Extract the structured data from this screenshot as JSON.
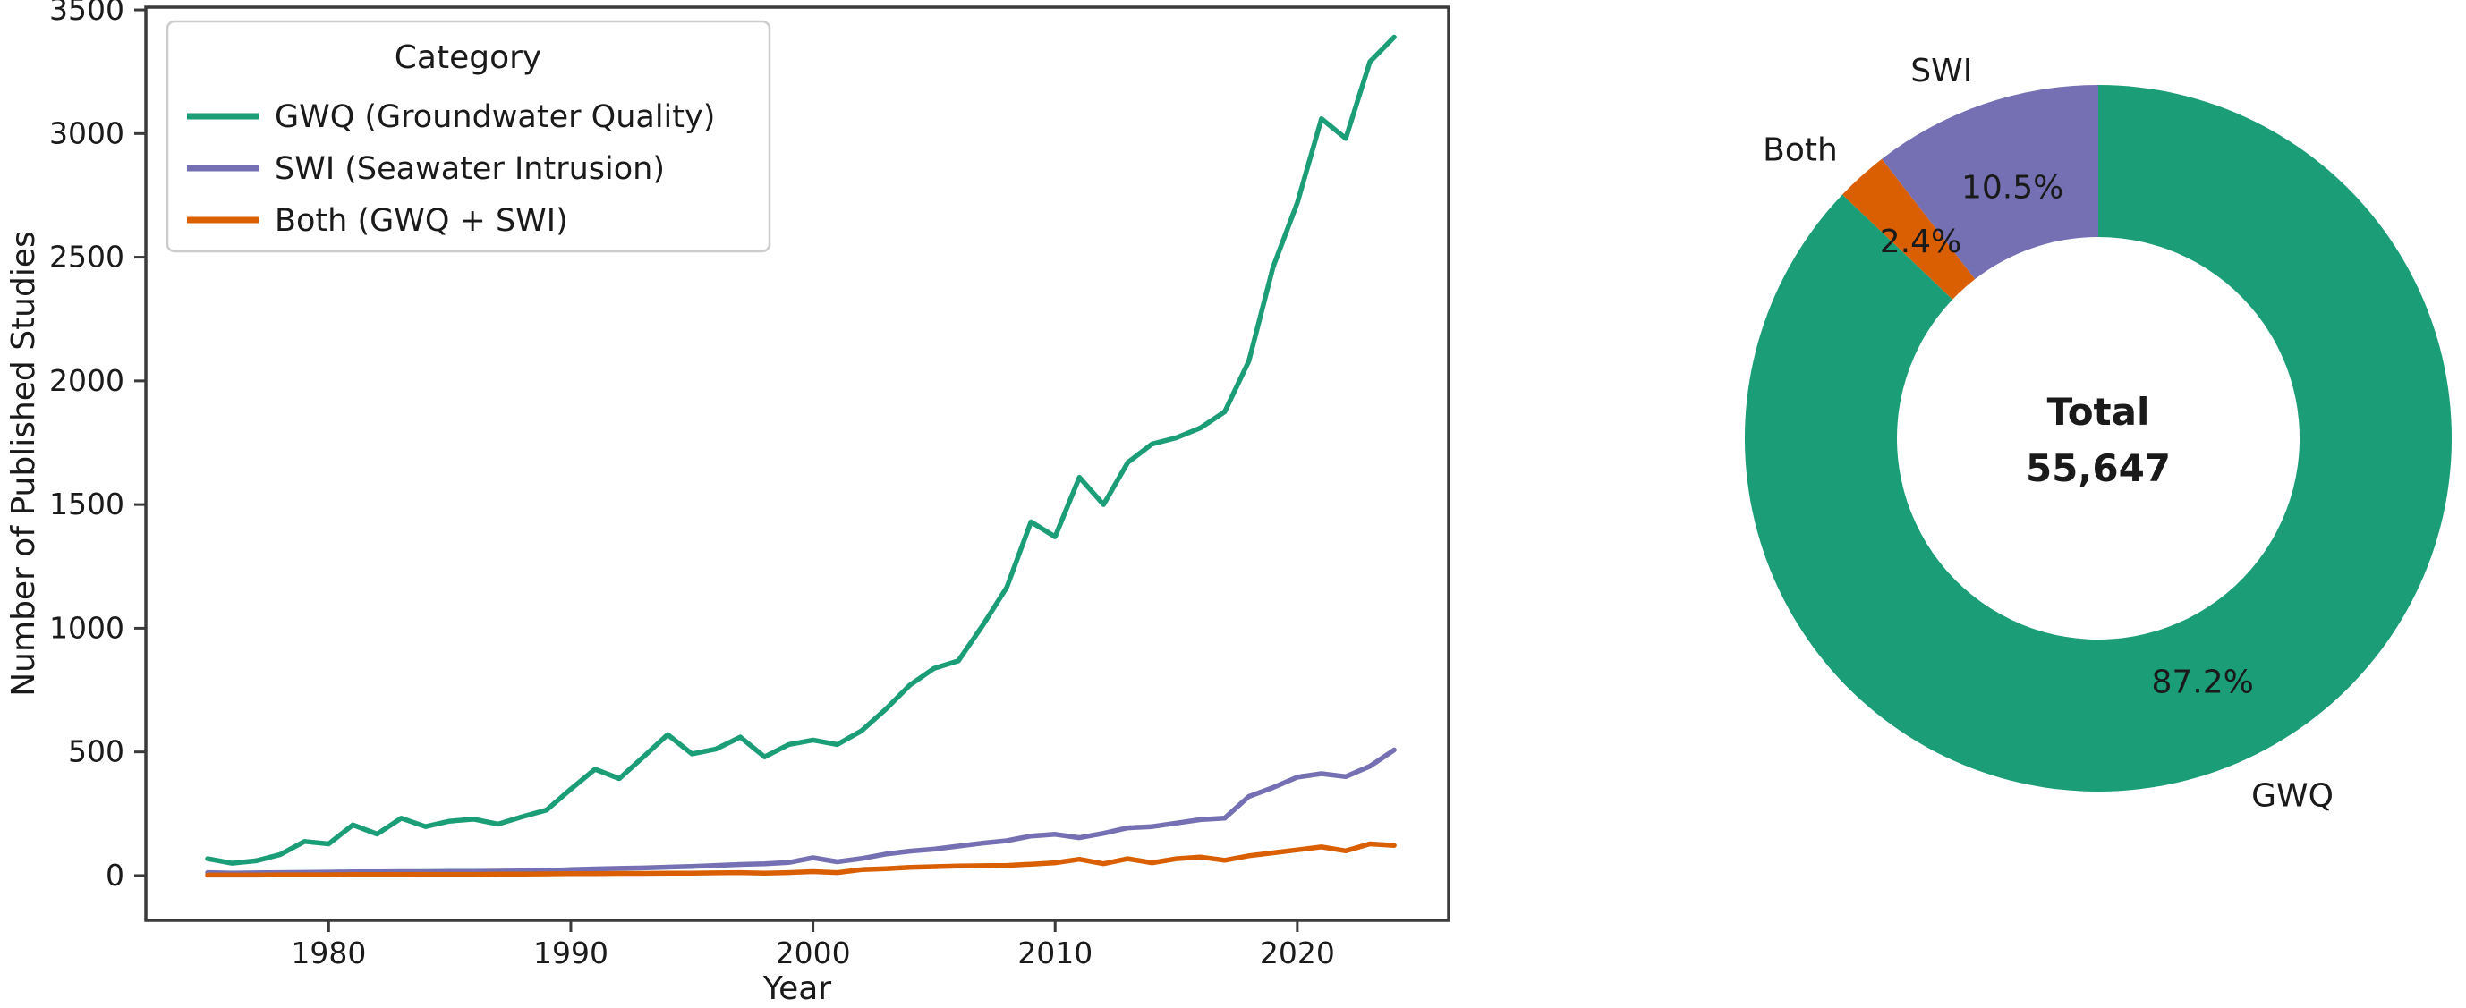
{
  "figure": {
    "background": "#ffffff",
    "description_left_panel": "line-chart",
    "description_right_panel": "donut-chart"
  },
  "colors": {
    "gwq": "#1b9e77",
    "swi": "#7570b3",
    "both": "#d95f02",
    "spine": "#3a3a3a",
    "text": "#1a1a1a",
    "legend_border": "#cccccc",
    "legend_fill": "#ffffff"
  },
  "chart_data": [
    {
      "type": "line",
      "title": "",
      "xlabel": "Year",
      "ylabel": "Number of Published Studies",
      "grid": false,
      "x_ticks": [
        1980,
        1990,
        2000,
        2010,
        2020
      ],
      "y_ticks": [
        0,
        500,
        1000,
        1500,
        2000,
        2500,
        3000,
        3500
      ],
      "xlim": [
        1972.45,
        2026.25
      ],
      "ylim": [
        -181,
        3511
      ],
      "legend": {
        "title": "Category",
        "position": "upper-left"
      },
      "x": [
        1975,
        1976,
        1977,
        1978,
        1979,
        1980,
        1981,
        1982,
        1983,
        1984,
        1985,
        1986,
        1987,
        1988,
        1989,
        1990,
        1991,
        1992,
        1993,
        1994,
        1995,
        1996,
        1997,
        1998,
        1999,
        2000,
        2001,
        2002,
        2003,
        2004,
        2005,
        2006,
        2007,
        2008,
        2009,
        2010,
        2011,
        2012,
        2013,
        2014,
        2015,
        2016,
        2017,
        2018,
        2019,
        2020,
        2021,
        2022,
        2023,
        2024
      ],
      "series": [
        {
          "name": "GWQ (Groundwater Quality)",
          "color_key": "gwq",
          "values": [
            68,
            50,
            60,
            85,
            138,
            128,
            205,
            168,
            232,
            198,
            220,
            228,
            208,
            238,
            265,
            350,
            430,
            392,
            480,
            570,
            492,
            512,
            560,
            480,
            530,
            548,
            530,
            585,
            672,
            770,
            838,
            868,
            1010,
            1165,
            1430,
            1370,
            1610,
            1500,
            1670,
            1745,
            1770,
            1810,
            1875,
            2080,
            2460,
            2720,
            3060,
            2980,
            3290,
            3390
          ]
        },
        {
          "name": "SWI (Seawater Intrusion)",
          "color_key": "swi",
          "values": [
            12,
            10,
            11,
            12,
            13,
            14,
            15,
            15,
            16,
            16,
            17,
            17,
            18,
            19,
            21,
            24,
            27,
            29,
            31,
            34,
            37,
            41,
            45,
            48,
            53,
            72,
            56,
            69,
            87,
            99,
            107,
            119,
            131,
            141,
            160,
            167,
            153,
            171,
            193,
            198,
            212,
            226,
            232,
            320,
            356,
            398,
            412,
            400,
            442,
            508
          ]
        },
        {
          "name": "Both (GWQ + SWI)",
          "color_key": "both",
          "values": [
            2,
            2,
            2,
            3,
            3,
            3,
            4,
            4,
            4,
            5,
            5,
            5,
            6,
            6,
            7,
            8,
            8,
            9,
            9,
            10,
            10,
            11,
            12,
            10,
            12,
            16,
            12,
            24,
            28,
            33,
            36,
            39,
            40,
            41,
            46,
            52,
            66,
            48,
            68,
            52,
            68,
            75,
            62,
            80,
            92,
            104,
            116,
            100,
            128,
            122
          ]
        }
      ]
    },
    {
      "type": "pie",
      "donut": true,
      "start_angle": 90,
      "direction": "counterclockwise",
      "center_title": "Total",
      "center_value": "55,647",
      "slices": [
        {
          "label": "SWI",
          "value_pct": 10.5,
          "pct_label": "10.5%",
          "color_key": "swi"
        },
        {
          "label": "Both",
          "value_pct": 2.4,
          "pct_label": "2.4%",
          "color_key": "both"
        },
        {
          "label": "GWQ",
          "value_pct": 87.2,
          "pct_label": "87.2%",
          "color_key": "gwq"
        }
      ]
    }
  ]
}
